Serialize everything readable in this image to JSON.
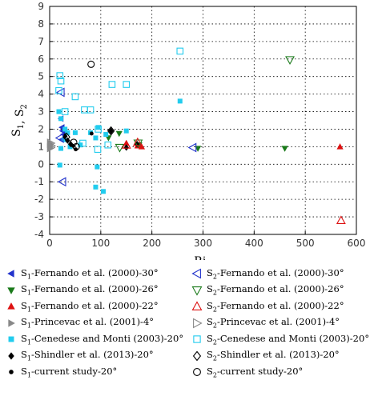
{
  "chart_data": {
    "type": "scatter",
    "xlabel": "Ri",
    "xlabel_sub": "B",
    "ylabel": "S",
    "ylabel_parts": [
      {
        "t": "S",
        "s": "1"
      },
      {
        "t": ", S",
        "s": "2"
      }
    ],
    "xlim": [
      0,
      600
    ],
    "ylim": [
      -4,
      9
    ],
    "xticks": [
      0,
      100,
      200,
      300,
      400,
      500,
      600
    ],
    "yticks": [
      -4,
      -3,
      -2,
      -1,
      0,
      1,
      2,
      3,
      4,
      5,
      6,
      7,
      8,
      9
    ],
    "grid": true,
    "grid_style": "dotted",
    "legend_position": "below",
    "series": [
      {
        "name": "S1-Fernando et al. (2000)-30°",
        "sym": "S",
        "sub": "1",
        "rest": "-Fernando et al. (2000)-30°",
        "marker": "tri-left",
        "filled": true,
        "color": "#2233cc",
        "points": [
          [
            22,
            2.6
          ],
          [
            24,
            2.1
          ],
          [
            25,
            1.9
          ],
          [
            23,
            1.4
          ],
          [
            27,
            1.7
          ]
        ]
      },
      {
        "name": "S1-Fernando et al. (2000)-26°",
        "sym": "S",
        "sub": "1",
        "rest": "-Fernando et al. (2000)-26°",
        "marker": "tri-down",
        "filled": true,
        "color": "#1a7a1a",
        "points": [
          [
            115,
            1.5
          ],
          [
            136,
            1.75
          ],
          [
            175,
            1.1
          ],
          [
            290,
            0.9
          ],
          [
            460,
            0.9
          ]
        ]
      },
      {
        "name": "S1-Fernando et al. (2000)-22°",
        "sym": "S",
        "sub": "1",
        "rest": "-Fernando et al. (2000)-22°",
        "marker": "tri-up",
        "filled": true,
        "color": "#dd1111",
        "points": [
          [
            150,
            1.2
          ],
          [
            172,
            1.05
          ],
          [
            180,
            1.0
          ],
          [
            568,
            1.0
          ]
        ]
      },
      {
        "name": "S1-Princevac et al. (2001)-4°",
        "sym": "S",
        "sub": "1",
        "rest": "-Princevac et al. (2001)-4°",
        "marker": "tri-right",
        "filled": true,
        "color": "#888888",
        "points": [
          [
            1,
            1.2
          ],
          [
            1,
            1.0
          ],
          [
            2,
            1.1
          ],
          [
            2,
            0.9
          ]
        ]
      },
      {
        "name": "S1-Cenedese and Monti (2003)-20°",
        "sym": "S",
        "sub": "1",
        "rest": "-Cenedese and Monti (2003)-20°",
        "marker": "square",
        "filled": true,
        "color": "#22ccee",
        "points": [
          [
            18,
            3.0
          ],
          [
            22,
            2.6
          ],
          [
            30,
            2.0
          ],
          [
            28,
            1.4
          ],
          [
            35,
            1.8
          ],
          [
            40,
            1.0
          ],
          [
            50,
            1.8
          ],
          [
            60,
            1.1
          ],
          [
            80,
            1.8
          ],
          [
            90,
            1.5
          ],
          [
            95,
            2.1
          ],
          [
            110,
            1.7
          ],
          [
            150,
            1.9
          ],
          [
            255,
            3.6
          ],
          [
            20,
            -0.05
          ],
          [
            22,
            0.9
          ],
          [
            93,
            -0.15
          ],
          [
            90,
            -1.3
          ],
          [
            105,
            -1.55
          ]
        ]
      },
      {
        "name": "S1-Shindler et al. (2013)-20°",
        "sym": "S",
        "sub": "1",
        "rest": "-Shindler et al. (2013)-20°",
        "marker": "diamond",
        "filled": true,
        "color": "#000000",
        "points": [
          [
            30,
            1.6
          ],
          [
            35,
            1.35
          ],
          [
            41,
            1.15
          ],
          [
            120,
            1.9
          ],
          [
            150,
            0.95
          ],
          [
            171,
            1.15
          ]
        ]
      },
      {
        "name": "S1-current study-20°",
        "sym": "S",
        "sub": "1",
        "rest": "-current study-20°",
        "marker": "circle",
        "filled": true,
        "color": "#000000",
        "points": [
          [
            46,
            1.05
          ],
          [
            51,
            0.85
          ],
          [
            82,
            1.75
          ]
        ]
      },
      {
        "name": "S2-Fernando et al. (2000)-30°",
        "sym": "S",
        "sub": "2",
        "rest": "-Fernando et al. (2000)-30°",
        "marker": "tri-left",
        "filled": false,
        "color": "#2233cc",
        "points": [
          [
            22,
            4.1
          ],
          [
            20,
            1.5
          ],
          [
            25,
            -1.0
          ],
          [
            280,
            0.95
          ]
        ]
      },
      {
        "name": "S2-Fernando et al. (2000)-26°",
        "sym": "S",
        "sub": "2",
        "rest": "-Fernando et al. (2000)-26°",
        "marker": "tri-down",
        "filled": false,
        "color": "#1a7a1a",
        "points": [
          [
            470,
            5.95
          ],
          [
            137,
            0.95
          ],
          [
            173,
            1.2
          ]
        ]
      },
      {
        "name": "S2-Fernando et al. (2000)-22°",
        "sym": "S",
        "sub": "2",
        "rest": "-Fernando et al. (2000)-22°",
        "marker": "tri-up",
        "filled": false,
        "color": "#dd1111",
        "points": [
          [
            570,
            -3.2
          ],
          [
            150,
            1.1
          ],
          [
            172,
            1.25
          ]
        ]
      },
      {
        "name": "S2-Princevac et al. (2001)-4°",
        "sym": "S",
        "sub": "2",
        "rest": "-Princevac et al. (2001)-4°",
        "marker": "tri-right",
        "filled": false,
        "color": "#888888",
        "points": [
          [
            2,
            1.2
          ],
          [
            3,
            1.05
          ],
          [
            2,
            0.95
          ]
        ]
      },
      {
        "name": "S2-Cenedese and Monti (2003)-20°",
        "sym": "S",
        "sub": "2",
        "rest": "-Cenedese and Monti (2003)-20°",
        "marker": "square",
        "filled": false,
        "color": "#22ccee",
        "points": [
          [
            20,
            5.05
          ],
          [
            22,
            4.75
          ],
          [
            18,
            4.2
          ],
          [
            30,
            3.0
          ],
          [
            50,
            3.85
          ],
          [
            68,
            3.1
          ],
          [
            80,
            3.1
          ],
          [
            95,
            2.0
          ],
          [
            122,
            4.55
          ],
          [
            150,
            4.55
          ],
          [
            255,
            6.45
          ],
          [
            94,
            0.85
          ],
          [
            114,
            1.1
          ],
          [
            65,
            1.2
          ]
        ]
      },
      {
        "name": "S2-Shindler et al. (2013)-20°",
        "sym": "S",
        "sub": "2",
        "rest": "-Shindler et al. (2013)-20°",
        "marker": "diamond",
        "filled": false,
        "color": "#000000",
        "points": [
          [
            120,
            1.9
          ],
          [
            33,
            1.55
          ]
        ]
      },
      {
        "name": "S2-current study-20°",
        "sym": "S",
        "sub": "2",
        "rest": "-current study-20°",
        "marker": "circle",
        "filled": false,
        "color": "#000000",
        "points": [
          [
            81,
            5.7
          ],
          [
            47,
            1.25
          ],
          [
            52,
            1.0
          ]
        ]
      }
    ]
  }
}
